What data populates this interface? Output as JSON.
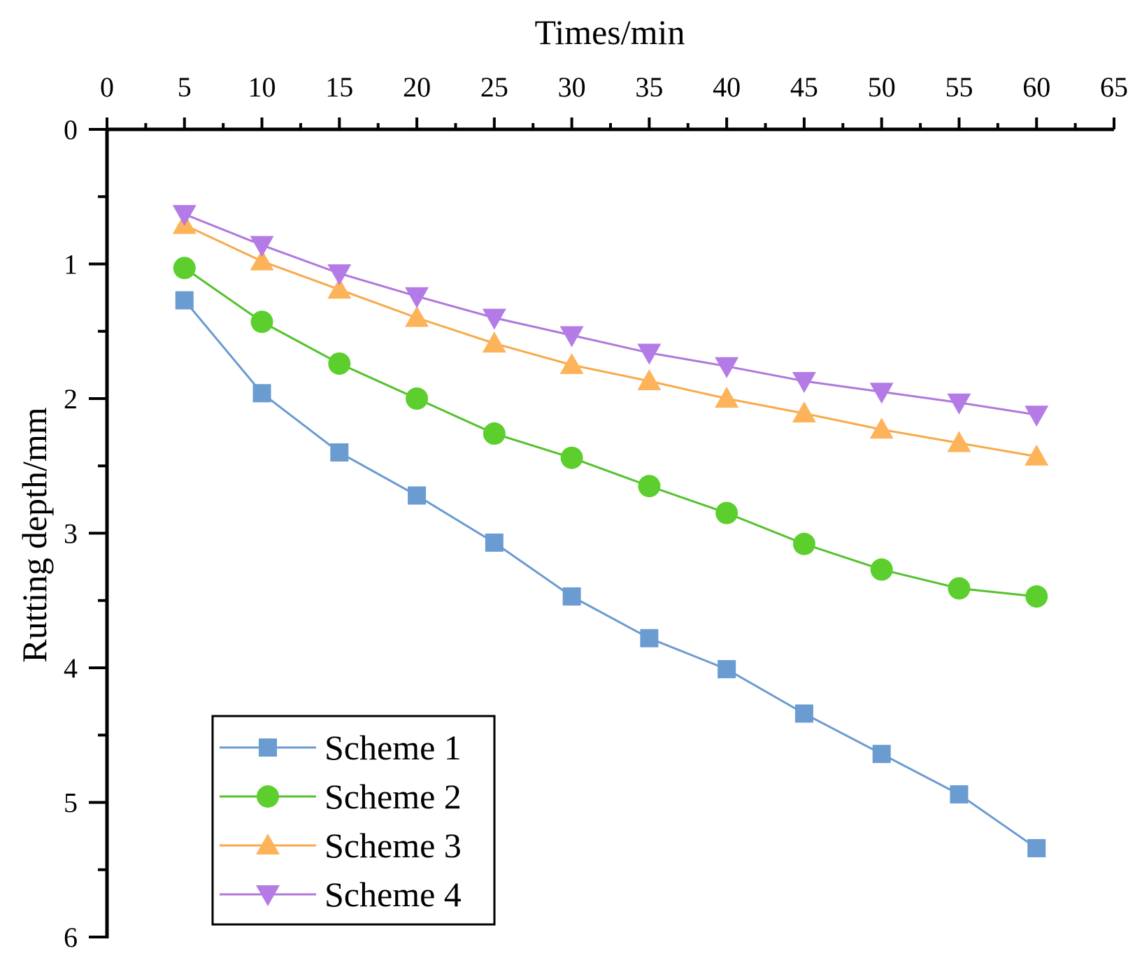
{
  "chart_data": {
    "type": "line",
    "xlabel": "Times/min",
    "ylabel": "Rutting depth/mm",
    "xlim": [
      0,
      65
    ],
    "ylim": [
      0,
      6
    ],
    "y_inverted": true,
    "x_axis_position": "top",
    "x_ticks": [
      0,
      5,
      10,
      15,
      20,
      25,
      30,
      35,
      40,
      45,
      50,
      55,
      60,
      65
    ],
    "y_ticks": [
      0,
      1,
      2,
      3,
      4,
      5,
      6
    ],
    "x": [
      5,
      10,
      15,
      20,
      25,
      30,
      35,
      40,
      45,
      50,
      55,
      60
    ],
    "legend_position": "bottom-left",
    "series": [
      {
        "name": "Scheme 1",
        "marker": "square",
        "color": "#6a9bd1",
        "marker_color": "#6a9bd1",
        "values": [
          1.27,
          1.96,
          2.4,
          2.72,
          3.07,
          3.47,
          3.78,
          4.01,
          4.34,
          4.64,
          4.94,
          5.34
        ]
      },
      {
        "name": "Scheme 2",
        "marker": "circle",
        "color": "#53c22c",
        "marker_color": "#5ccf2e",
        "values": [
          1.03,
          1.43,
          1.74,
          2.0,
          2.26,
          2.44,
          2.65,
          2.85,
          3.08,
          3.27,
          3.41,
          3.47
        ]
      },
      {
        "name": "Scheme 3",
        "marker": "triangle-up",
        "color": "#f9a94a",
        "marker_color": "#fdb35a",
        "values": [
          0.71,
          0.98,
          1.19,
          1.4,
          1.59,
          1.75,
          1.87,
          2.0,
          2.11,
          2.23,
          2.33,
          2.43
        ]
      },
      {
        "name": "Scheme 4",
        "marker": "triangle-down",
        "color": "#b078dc",
        "marker_color": "#b47be6",
        "values": [
          0.63,
          0.86,
          1.07,
          1.24,
          1.4,
          1.53,
          1.66,
          1.76,
          1.87,
          1.95,
          2.03,
          2.12
        ]
      }
    ]
  }
}
